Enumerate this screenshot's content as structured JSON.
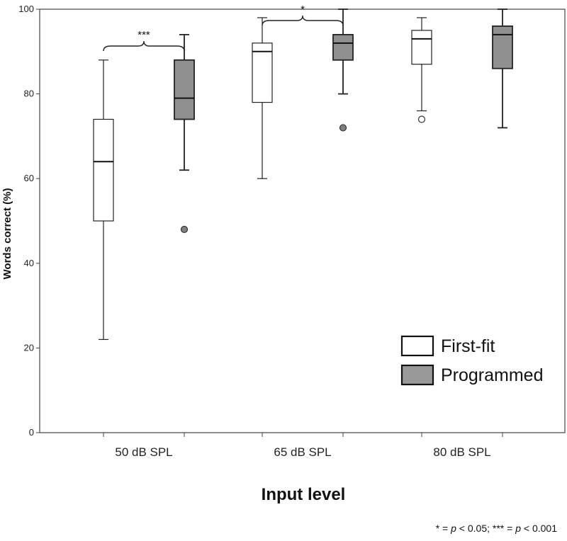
{
  "chart_data": {
    "type": "box",
    "xlabel": "Input level",
    "ylabel": "Words correct (%)",
    "ylim": [
      0,
      100
    ],
    "yticks": [
      0,
      20,
      40,
      60,
      80,
      100
    ],
    "categories": [
      "50 dB SPL",
      "65 dB SPL",
      "80 dB SPL"
    ],
    "legend_position": "bottom-right",
    "series": [
      {
        "name": "First-fit",
        "color": "#ffffff",
        "boxes": [
          {
            "min": 22,
            "q1": 50,
            "median": 64,
            "q3": 74,
            "max": 88,
            "outliers": []
          },
          {
            "min": 60,
            "q1": 78,
            "median": 90,
            "q3": 92,
            "max": 98,
            "outliers": []
          },
          {
            "min": 76,
            "q1": 87,
            "median": 93,
            "q3": 95,
            "max": 98,
            "outliers": [
              74
            ]
          }
        ]
      },
      {
        "name": "Programmed",
        "color": "#909090",
        "boxes": [
          {
            "min": 62,
            "q1": 74,
            "median": 79,
            "q3": 88,
            "max": 94,
            "outliers": [
              48
            ]
          },
          {
            "min": 80,
            "q1": 88,
            "median": 92,
            "q3": 94,
            "max": 100,
            "outliers": [
              72
            ]
          },
          {
            "min": 72,
            "q1": 86,
            "median": 94,
            "q3": 96,
            "max": 100,
            "outliers": []
          }
        ]
      }
    ],
    "significance": [
      {
        "category": 0,
        "label": "***"
      },
      {
        "category": 1,
        "label": "*"
      }
    ]
  },
  "footnote": {
    "part1": "* = ",
    "p1": "p",
    "part2": " < 0.05; *** = ",
    "p2": "p",
    "part3": " < 0.001"
  }
}
